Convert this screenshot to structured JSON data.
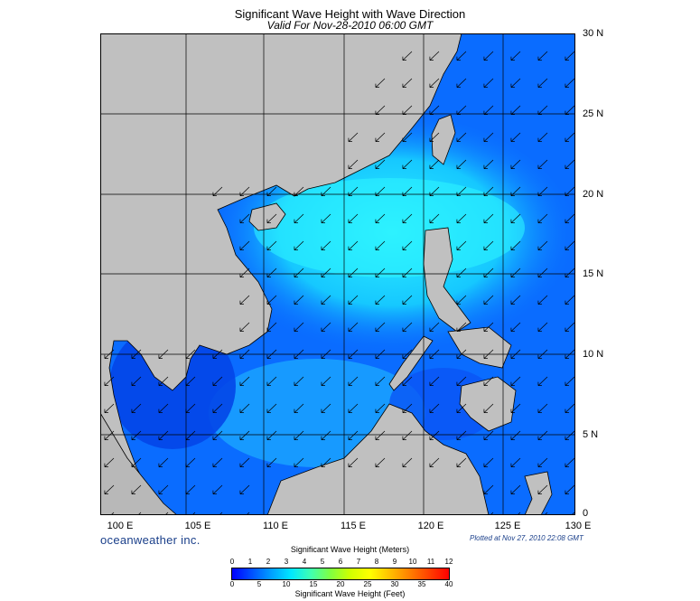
{
  "title": "Significant Wave Height with Wave Direction",
  "subtitle": "Valid For Nov-28-2010 06:00 GMT",
  "lat_labels": [
    "30 N",
    "25 N",
    "20 N",
    "15 N",
    "10 N",
    "5 N",
    "0"
  ],
  "lon_labels": [
    "100 E",
    "105 E",
    "110 E",
    "115 E",
    "120 E",
    "125 E",
    "130 E"
  ],
  "brand": "oceanweather inc.",
  "plotted": "Plotted at Nov 27, 2010 22:08 GMT",
  "colorbar": {
    "title_meters": "Significant Wave Height (Meters)",
    "title_feet": "Significant Wave Height (Feet)",
    "meters_ticks": [
      "0",
      "1",
      "2",
      "3",
      "4",
      "5",
      "6",
      "7",
      "8",
      "9",
      "10",
      "11",
      "12"
    ],
    "feet_ticks": [
      "0",
      "5",
      "10",
      "15",
      "20",
      "25",
      "30",
      "35",
      "40"
    ],
    "colors": [
      "#0000ff",
      "#0050ff",
      "#00a0ff",
      "#00e8ff",
      "#40ffb0",
      "#80ff40",
      "#d0ff00",
      "#ffff00",
      "#ffc000",
      "#ff8000",
      "#ff4000",
      "#ff0000"
    ]
  },
  "map": {
    "lon_range": [
      99,
      130
    ],
    "lat_range": [
      0,
      30
    ],
    "land_color": "#c0c0c0",
    "ocean_base_color": "#0a6cff",
    "wave_direction": "north-easterly (arrows point toward south-west)"
  }
}
